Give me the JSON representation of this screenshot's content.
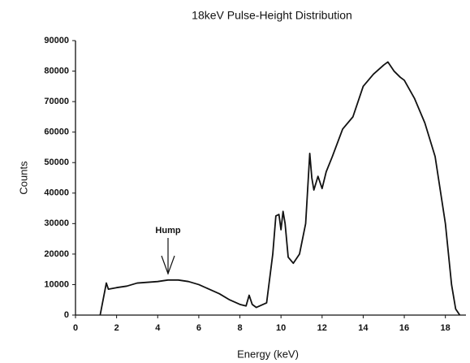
{
  "chart_data": {
    "type": "line",
    "title": "18keV Pulse-Height Distribution",
    "xlabel": "Energy (keV)",
    "ylabel": "Counts",
    "annotations": [
      "Hump"
    ],
    "series": [
      {
        "name": "Counts",
        "color": "#111111",
        "x": [
          1.2,
          1.5,
          1.6,
          2,
          2.5,
          3,
          4,
          4.5,
          5,
          5.5,
          6,
          6.5,
          7,
          7.5,
          8,
          8.3,
          8.45,
          8.6,
          8.8,
          9.3,
          9.6,
          9.75,
          9.9,
          10.0,
          10.1,
          10.2,
          10.35,
          10.6,
          10.9,
          11.2,
          11.4,
          11.5,
          11.6,
          11.8,
          12.0,
          12.2,
          12.5,
          13,
          13.5,
          14,
          14.5,
          15.0,
          15.2,
          15.5,
          15.8,
          16,
          16.5,
          17,
          17.5,
          18,
          18.3,
          18.5,
          18.7
        ],
        "values": [
          0,
          10500,
          8500,
          9000,
          9500,
          10500,
          11000,
          11500,
          11500,
          11000,
          10000,
          8500,
          7000,
          5000,
          3500,
          3000,
          6500,
          3500,
          2500,
          4000,
          20000,
          32500,
          33000,
          28000,
          34000,
          30000,
          19000,
          17000,
          20000,
          30000,
          53000,
          45000,
          41000,
          45500,
          41500,
          47000,
          52000,
          61000,
          65000,
          75000,
          79000,
          82000,
          83000,
          80000,
          78000,
          77000,
          71000,
          63000,
          52000,
          30000,
          10000,
          2000,
          0
        ]
      }
    ],
    "xlim": [
      0,
      19
    ],
    "xticks": [
      0,
      2,
      4,
      6,
      8,
      10,
      12,
      14,
      16,
      18
    ],
    "ylim": [
      0,
      90000
    ],
    "yticks": [
      0,
      10000,
      20000,
      30000,
      40000,
      50000,
      60000,
      70000,
      80000,
      90000
    ],
    "grid": false
  }
}
